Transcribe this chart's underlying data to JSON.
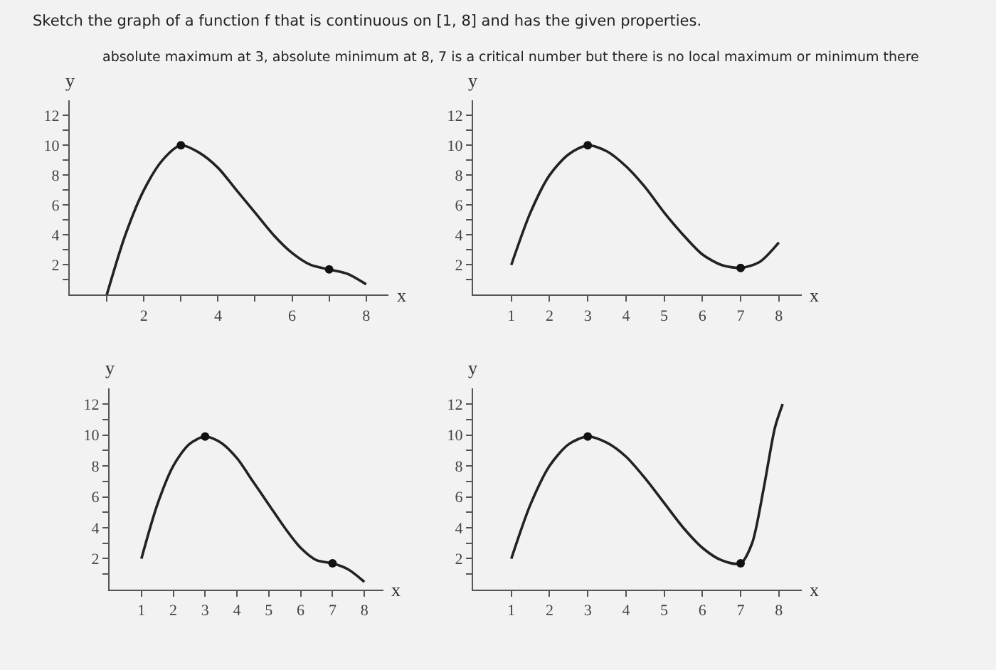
{
  "chart_data": [
    {
      "type": "line",
      "title": "Sketch the graph of a function f that is continuous on [1, 8] and has the given properties.",
      "subtitle": "absolute maximum at 3, absolute minimum at 8, 7 is a critical number but there is no local maximum or minimum there",
      "xlabel": "x",
      "ylabel": "y",
      "xlim": [
        0,
        8.6
      ],
      "ylim": [
        0,
        13
      ],
      "xticks": [
        {
          "value": 1,
          "label": null
        },
        2,
        {
          "value": 3,
          "label": null
        },
        4,
        {
          "value": 5,
          "label": null
        },
        6,
        {
          "value": 7,
          "label": null
        },
        8
      ],
      "yticks": [
        {
          "value": 1,
          "label": null
        },
        2,
        {
          "value": 3,
          "label": null
        },
        4,
        {
          "value": 5,
          "label": null
        },
        6,
        {
          "value": 7,
          "label": null
        },
        8,
        {
          "value": 9,
          "label": null
        },
        10,
        {
          "value": 11,
          "label": null
        },
        12
      ],
      "grid": false,
      "series": [
        {
          "color": "#222222",
          "line_style": "solid",
          "x": [
            1,
            1.5,
            2,
            2.5,
            3,
            3.5,
            4,
            4.5,
            5,
            5.5,
            6,
            6.5,
            7,
            7.5,
            8
          ],
          "values": [
            0,
            4,
            7,
            9,
            10,
            9.5,
            8.5,
            7,
            5.5,
            4,
            2.8,
            2,
            1.7,
            1.4,
            0.7
          ]
        },
        {
          "type": "scatter",
          "color": "#111111",
          "marker": "circle",
          "x": [
            3,
            7
          ],
          "values": [
            10,
            1.7
          ]
        }
      ]
    },
    {
      "type": "line",
      "xlabel": "x",
      "ylabel": "y",
      "xlim": [
        0,
        8.6
      ],
      "ylim": [
        0,
        13
      ],
      "xticks": [
        1,
        2,
        3,
        4,
        5,
        6,
        7,
        8
      ],
      "yticks": [
        {
          "value": 1,
          "label": null
        },
        2,
        {
          "value": 3,
          "label": null
        },
        4,
        {
          "value": 5,
          "label": null
        },
        6,
        {
          "value": 7,
          "label": null
        },
        8,
        {
          "value": 9,
          "label": null
        },
        10,
        {
          "value": 11,
          "label": null
        },
        12
      ],
      "grid": false,
      "series": [
        {
          "color": "#222222",
          "line_style": "solid",
          "x": [
            1,
            1.5,
            2,
            2.5,
            3,
            3.5,
            4,
            4.5,
            5,
            5.5,
            6,
            6.5,
            7,
            7.5,
            8
          ],
          "values": [
            2,
            5.5,
            8,
            9.4,
            10,
            9.6,
            8.6,
            7.2,
            5.5,
            4,
            2.7,
            2,
            1.8,
            2.2,
            3.5
          ]
        },
        {
          "type": "scatter",
          "color": "#111111",
          "marker": "circle",
          "x": [
            3,
            7
          ],
          "values": [
            10,
            1.8
          ]
        }
      ]
    },
    {
      "type": "line",
      "xlabel": "x",
      "ylabel": "y",
      "xlim": [
        0,
        8.6
      ],
      "ylim": [
        0,
        13
      ],
      "xticks": [
        1,
        2,
        3,
        4,
        5,
        6,
        7,
        8
      ],
      "yticks": [
        {
          "value": 1,
          "label": null
        },
        2,
        {
          "value": 3,
          "label": null
        },
        4,
        {
          "value": 5,
          "label": null
        },
        6,
        {
          "value": 7,
          "label": null
        },
        8,
        {
          "value": 9,
          "label": null
        },
        10,
        {
          "value": 11,
          "label": null
        },
        12
      ],
      "grid": false,
      "series": [
        {
          "color": "#222222",
          "line_style": "solid",
          "x": [
            1,
            1.5,
            2,
            2.5,
            3,
            3.5,
            4,
            4.5,
            5,
            5.5,
            6,
            6.5,
            7,
            7.5,
            8
          ],
          "values": [
            2,
            5.5,
            8,
            9.4,
            9.9,
            9.5,
            8.5,
            7,
            5.5,
            4,
            2.7,
            1.9,
            1.7,
            1.3,
            0.5
          ]
        },
        {
          "type": "scatter",
          "color": "#111111",
          "marker": "circle",
          "x": [
            3,
            7
          ],
          "values": [
            9.9,
            1.7
          ]
        }
      ]
    },
    {
      "type": "line",
      "xlabel": "x",
      "ylabel": "y",
      "xlim": [
        0,
        8.6
      ],
      "ylim": [
        0,
        13
      ],
      "xticks": [
        1,
        2,
        3,
        4,
        5,
        6,
        7,
        8
      ],
      "yticks": [
        {
          "value": 1,
          "label": null
        },
        2,
        {
          "value": 3,
          "label": null
        },
        4,
        {
          "value": 5,
          "label": null
        },
        6,
        {
          "value": 7,
          "label": null
        },
        8,
        {
          "value": 9,
          "label": null
        },
        10,
        {
          "value": 11,
          "label": null
        },
        12
      ],
      "grid": false,
      "series": [
        {
          "color": "#222222",
          "line_style": "solid",
          "x": [
            1,
            1.5,
            2,
            2.5,
            3,
            3.5,
            4,
            4.5,
            5,
            5.5,
            6,
            6.5,
            7,
            7.3,
            7.6,
            7.9,
            8.1
          ],
          "values": [
            2,
            5.5,
            8,
            9.4,
            9.9,
            9.5,
            8.6,
            7.2,
            5.6,
            4,
            2.7,
            1.9,
            1.7,
            3,
            6.5,
            10.5,
            12
          ]
        },
        {
          "type": "scatter",
          "color": "#111111",
          "marker": "circle",
          "x": [
            3,
            7
          ],
          "values": [
            9.9,
            1.7
          ]
        }
      ]
    }
  ]
}
